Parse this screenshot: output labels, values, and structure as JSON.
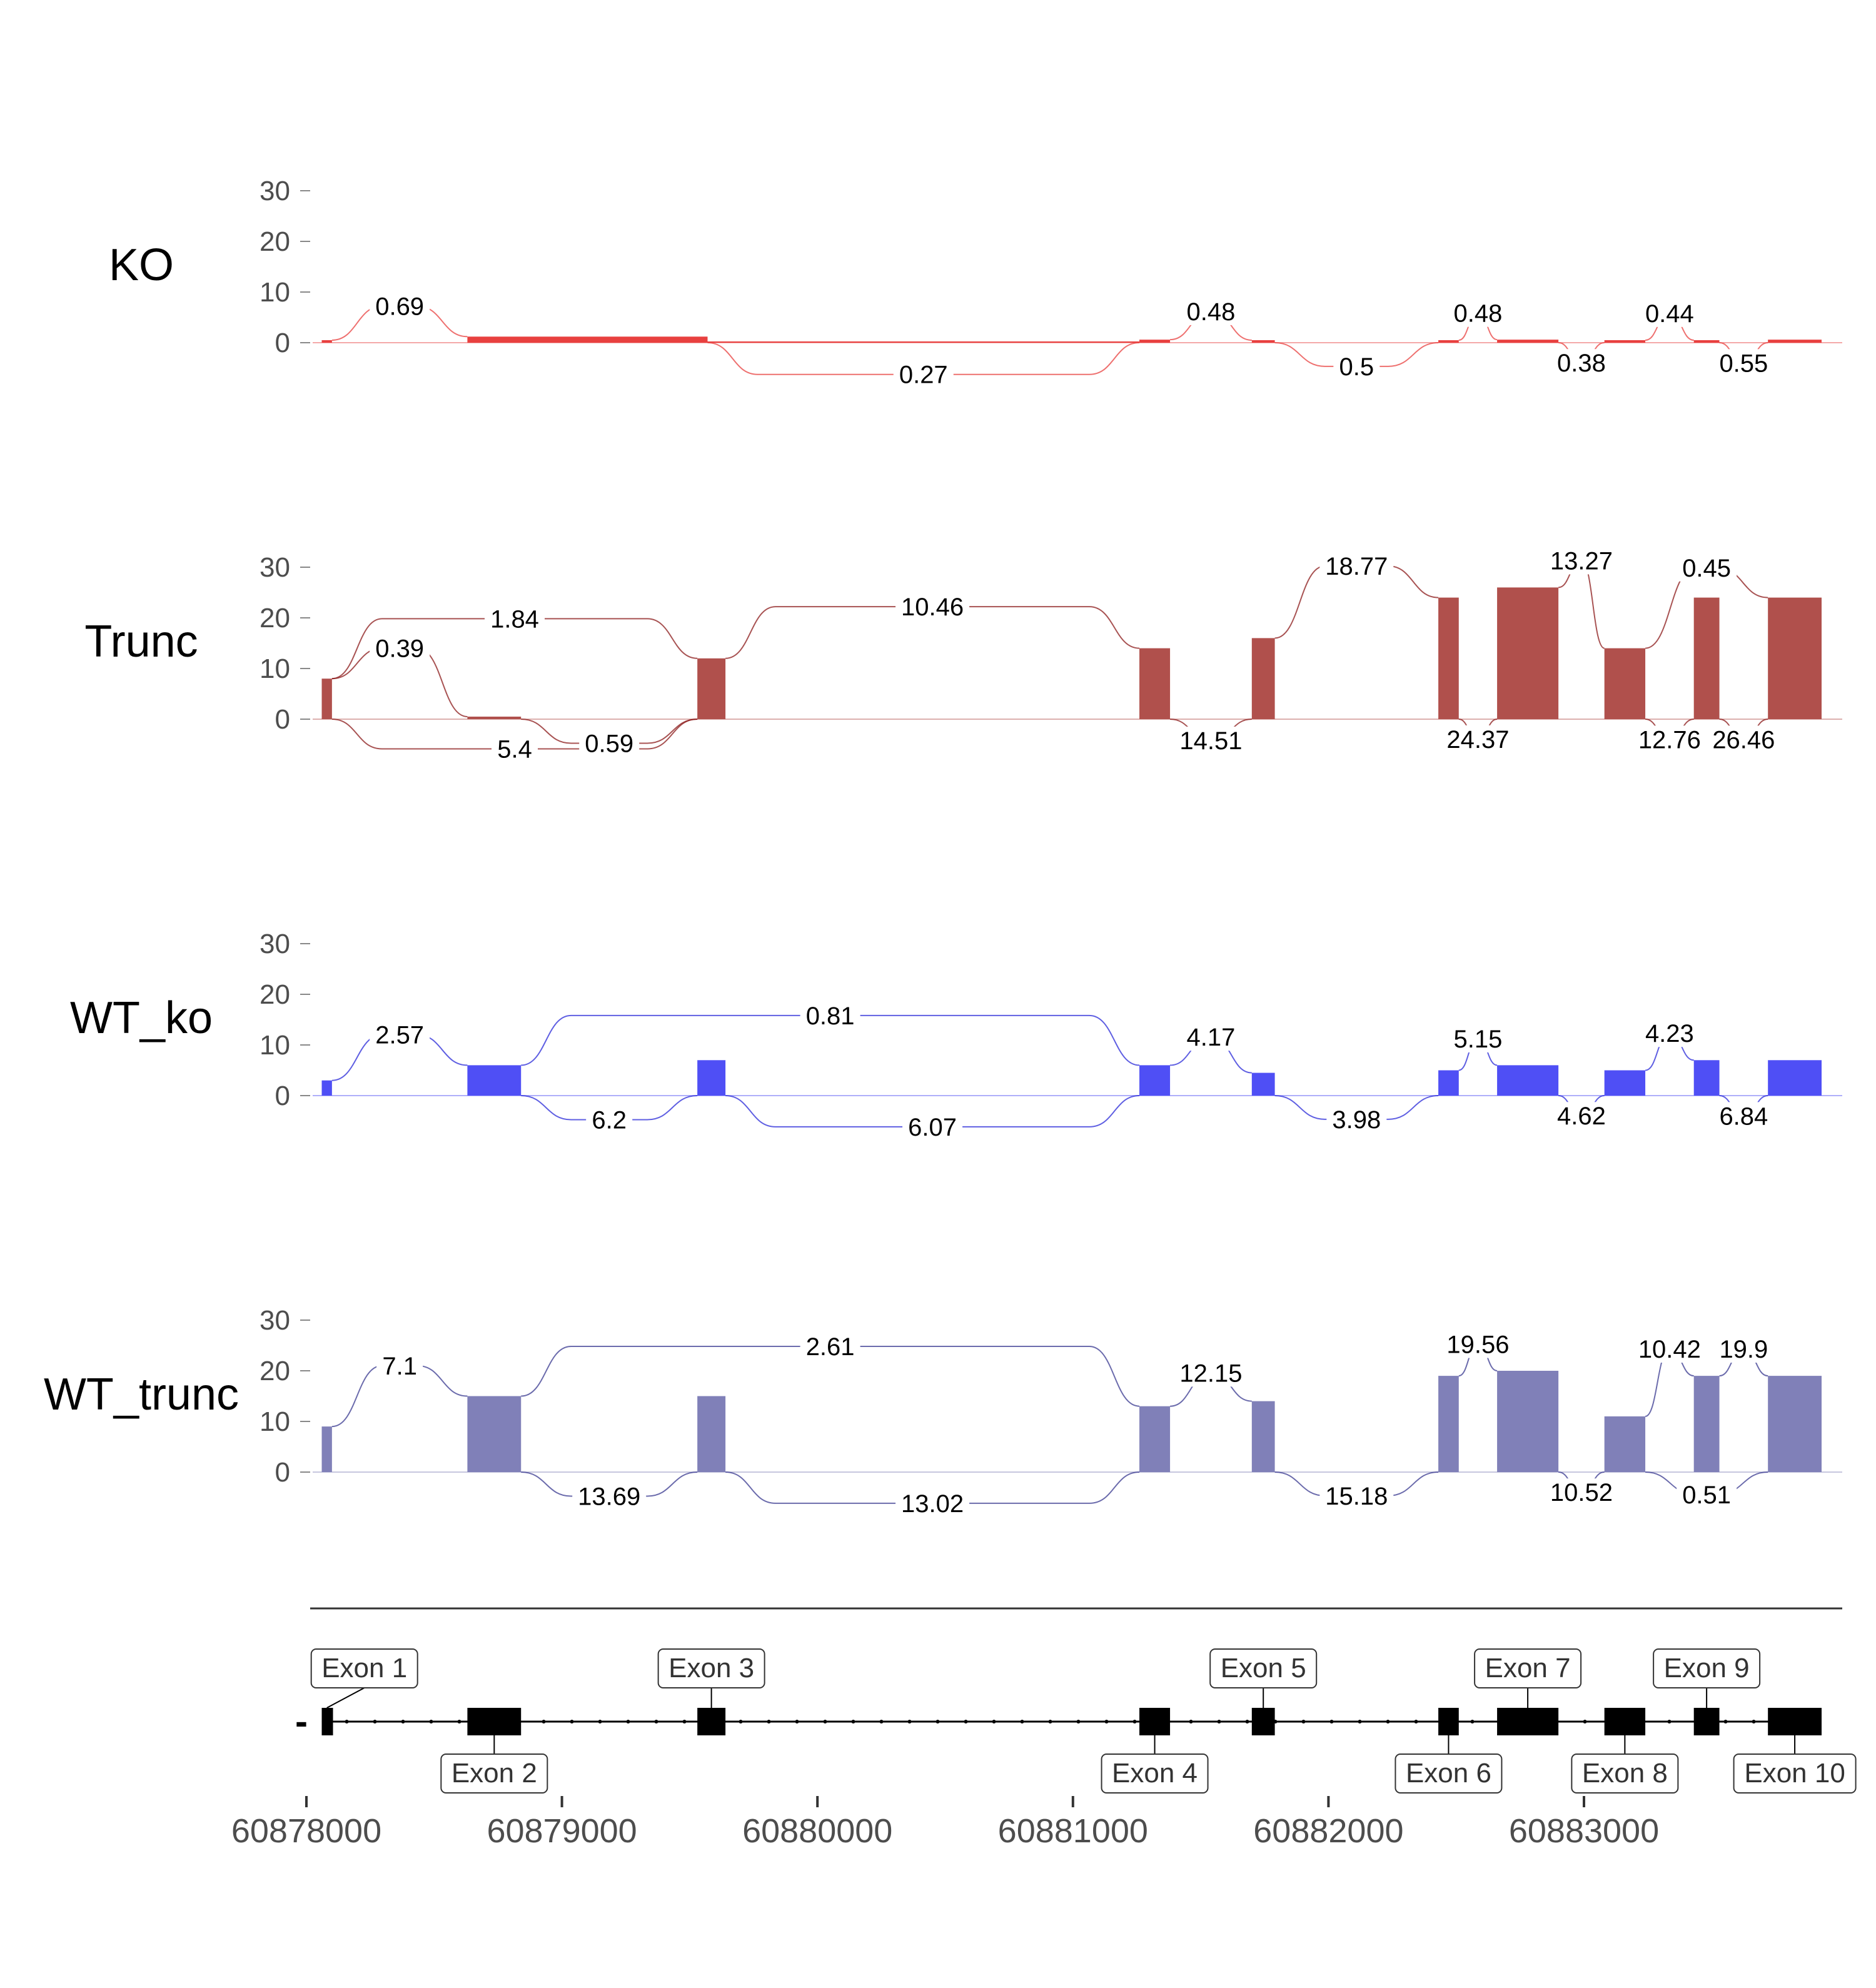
{
  "chart_data": {
    "type": "area",
    "title": "",
    "xlabel": "",
    "ylabel": "",
    "xlim": [
      60878000,
      60884000
    ],
    "ylim": [
      0,
      35
    ],
    "y_ticks": [
      0,
      10,
      20,
      30
    ],
    "x_ticks": [
      60878000,
      60879000,
      60880000,
      60881000,
      60882000,
      60883000
    ],
    "x_tick_labels": [
      "60878000",
      "60879000",
      "60880000",
      "60881000",
      "60882000",
      "60883000"
    ],
    "legend": "none",
    "exons": [
      {
        "name": "Exon 1",
        "start": 60878060,
        "end": 60878100
      },
      {
        "name": "Exon 2",
        "start": 60878630,
        "end": 60878840
      },
      {
        "name": "Exon 3",
        "start": 60879530,
        "end": 60879640
      },
      {
        "name": "Exon 4",
        "start": 60881260,
        "end": 60881380
      },
      {
        "name": "Exon 5",
        "start": 60881700,
        "end": 60881790
      },
      {
        "name": "Exon 6",
        "start": 60882430,
        "end": 60882510
      },
      {
        "name": "Exon 7",
        "start": 60882660,
        "end": 60882900
      },
      {
        "name": "Exon 8",
        "start": 60883080,
        "end": 60883240
      },
      {
        "name": "Exon 9",
        "start": 60883430,
        "end": 60883530
      },
      {
        "name": "Exon 10",
        "start": 60883720,
        "end": 60883930
      }
    ],
    "strand_label": "-",
    "tracks": [
      {
        "name": "KO",
        "color": "#e8403f",
        "arc_color": "#e8403f",
        "coverage": [
          {
            "start": 60878060,
            "end": 60878100,
            "value": 0.5
          },
          {
            "start": 60878630,
            "end": 60879570,
            "value": 1.2
          },
          {
            "start": 60879570,
            "end": 60881260,
            "value": 0.15
          },
          {
            "start": 60881260,
            "end": 60881380,
            "value": 0.6
          },
          {
            "start": 60881700,
            "end": 60881790,
            "value": 0.5
          },
          {
            "start": 60882430,
            "end": 60882510,
            "value": 0.5
          },
          {
            "start": 60882660,
            "end": 60882900,
            "value": 0.6
          },
          {
            "start": 60883080,
            "end": 60883240,
            "value": 0.5
          },
          {
            "start": 60883430,
            "end": 60883530,
            "value": 0.5
          },
          {
            "start": 60883720,
            "end": 60883930,
            "value": 0.6
          }
        ],
        "junctions": [
          {
            "start": 60878100,
            "end": 60878630,
            "value": 0.69,
            "side": "top"
          },
          {
            "start": 60879570,
            "end": 60881260,
            "value": 0.27,
            "side": "bottom"
          },
          {
            "start": 60881380,
            "end": 60881700,
            "value": 0.48,
            "side": "top"
          },
          {
            "start": 60881790,
            "end": 60882430,
            "value": 0.5,
            "side": "bottom"
          },
          {
            "start": 60882510,
            "end": 60882660,
            "value": 0.48,
            "side": "top"
          },
          {
            "start": 60882900,
            "end": 60883080,
            "value": 0.38,
            "side": "bottom"
          },
          {
            "start": 60883240,
            "end": 60883430,
            "value": 0.44,
            "side": "top"
          },
          {
            "start": 60883530,
            "end": 60883720,
            "value": 0.55,
            "side": "bottom"
          }
        ]
      },
      {
        "name": "Trunc",
        "color": "#b0504c",
        "arc_color": "#8b1a1a",
        "coverage": [
          {
            "start": 60878060,
            "end": 60878100,
            "value": 8
          },
          {
            "start": 60878630,
            "end": 60878840,
            "value": 0.5
          },
          {
            "start": 60879530,
            "end": 60879640,
            "value": 12
          },
          {
            "start": 60881260,
            "end": 60881380,
            "value": 14
          },
          {
            "start": 60881700,
            "end": 60881790,
            "value": 16
          },
          {
            "start": 60882430,
            "end": 60882510,
            "value": 24
          },
          {
            "start": 60882660,
            "end": 60882900,
            "value": 26
          },
          {
            "start": 60883080,
            "end": 60883240,
            "value": 14
          },
          {
            "start": 60883430,
            "end": 60883530,
            "value": 24
          },
          {
            "start": 60883720,
            "end": 60883930,
            "value": 24
          }
        ],
        "junctions": [
          {
            "start": 60878100,
            "end": 60878630,
            "value": 0.39,
            "side": "top"
          },
          {
            "start": 60878100,
            "end": 60879530,
            "value": 1.84,
            "side": "top"
          },
          {
            "start": 60878100,
            "end": 60879530,
            "value": 5.4,
            "side": "bottom"
          },
          {
            "start": 60878840,
            "end": 60879530,
            "value": 0.59,
            "side": "bottom"
          },
          {
            "start": 60879640,
            "end": 60881260,
            "value": 10.46,
            "side": "top"
          },
          {
            "start": 60881380,
            "end": 60881700,
            "value": 14.51,
            "side": "bottom"
          },
          {
            "start": 60881790,
            "end": 60882430,
            "value": 18.77,
            "side": "top"
          },
          {
            "start": 60882510,
            "end": 60882660,
            "value": 24.37,
            "side": "bottom"
          },
          {
            "start": 60882900,
            "end": 60883080,
            "value": 13.27,
            "side": "top"
          },
          {
            "start": 60883240,
            "end": 60883430,
            "value": 12.76,
            "side": "bottom"
          },
          {
            "start": 60883530,
            "end": 60883720,
            "value": 26.46,
            "side": "bottom"
          },
          {
            "start": 60883240,
            "end": 60883720,
            "value": 0.45,
            "side": "top"
          }
        ]
      },
      {
        "name": "WT_ko",
        "color": "#4f4ff5",
        "arc_color": "#2a2ad8",
        "coverage": [
          {
            "start": 60878060,
            "end": 60878100,
            "value": 3
          },
          {
            "start": 60878630,
            "end": 60878840,
            "value": 6
          },
          {
            "start": 60879530,
            "end": 60879640,
            "value": 7
          },
          {
            "start": 60881260,
            "end": 60881380,
            "value": 6
          },
          {
            "start": 60881700,
            "end": 60881790,
            "value": 4.5
          },
          {
            "start": 60882430,
            "end": 60882510,
            "value": 5
          },
          {
            "start": 60882660,
            "end": 60882900,
            "value": 6
          },
          {
            "start": 60883080,
            "end": 60883240,
            "value": 5
          },
          {
            "start": 60883430,
            "end": 60883530,
            "value": 7
          },
          {
            "start": 60883720,
            "end": 60883930,
            "value": 7
          }
        ],
        "junctions": [
          {
            "start": 60878100,
            "end": 60878630,
            "value": 2.57,
            "side": "top"
          },
          {
            "start": 60878840,
            "end": 60879530,
            "value": 6.2,
            "side": "bottom"
          },
          {
            "start": 60878840,
            "end": 60881260,
            "value": 0.81,
            "side": "top"
          },
          {
            "start": 60879640,
            "end": 60881260,
            "value": 6.07,
            "side": "bottom"
          },
          {
            "start": 60881380,
            "end": 60881700,
            "value": 4.17,
            "side": "top"
          },
          {
            "start": 60881790,
            "end": 60882430,
            "value": 3.98,
            "side": "bottom"
          },
          {
            "start": 60882510,
            "end": 60882660,
            "value": 5.15,
            "side": "top"
          },
          {
            "start": 60882900,
            "end": 60883080,
            "value": 4.62,
            "side": "bottom"
          },
          {
            "start": 60883240,
            "end": 60883430,
            "value": 4.23,
            "side": "top"
          },
          {
            "start": 60883530,
            "end": 60883720,
            "value": 6.84,
            "side": "bottom"
          }
        ]
      },
      {
        "name": "WT_trunc",
        "color": "#8080b8",
        "arc_color": "#3a3a90",
        "coverage": [
          {
            "start": 60878060,
            "end": 60878100,
            "value": 9
          },
          {
            "start": 60878630,
            "end": 60878840,
            "value": 15
          },
          {
            "start": 60879530,
            "end": 60879640,
            "value": 15
          },
          {
            "start": 60881260,
            "end": 60881380,
            "value": 13
          },
          {
            "start": 60881700,
            "end": 60881790,
            "value": 14
          },
          {
            "start": 60882430,
            "end": 60882510,
            "value": 19
          },
          {
            "start": 60882660,
            "end": 60882900,
            "value": 20
          },
          {
            "start": 60883080,
            "end": 60883240,
            "value": 11
          },
          {
            "start": 60883430,
            "end": 60883530,
            "value": 19
          },
          {
            "start": 60883720,
            "end": 60883930,
            "value": 19
          }
        ],
        "junctions": [
          {
            "start": 60878100,
            "end": 60878630,
            "value": 7.1,
            "side": "top"
          },
          {
            "start": 60878840,
            "end": 60879530,
            "value": 13.69,
            "side": "bottom"
          },
          {
            "start": 60878840,
            "end": 60881260,
            "value": 2.61,
            "side": "top"
          },
          {
            "start": 60879640,
            "end": 60881260,
            "value": 13.02,
            "side": "bottom"
          },
          {
            "start": 60881380,
            "end": 60881700,
            "value": 12.15,
            "side": "top"
          },
          {
            "start": 60881790,
            "end": 60882430,
            "value": 15.18,
            "side": "bottom"
          },
          {
            "start": 60882510,
            "end": 60882660,
            "value": 19.56,
            "side": "top"
          },
          {
            "start": 60882900,
            "end": 60883080,
            "value": 10.52,
            "side": "bottom"
          },
          {
            "start": 60883240,
            "end": 60883430,
            "value": 10.42,
            "side": "top"
          },
          {
            "start": 60883240,
            "end": 60883720,
            "value": 0.51,
            "side": "bottom"
          },
          {
            "start": 60883530,
            "end": 60883720,
            "value": 19.9,
            "side": "top"
          }
        ]
      }
    ]
  }
}
